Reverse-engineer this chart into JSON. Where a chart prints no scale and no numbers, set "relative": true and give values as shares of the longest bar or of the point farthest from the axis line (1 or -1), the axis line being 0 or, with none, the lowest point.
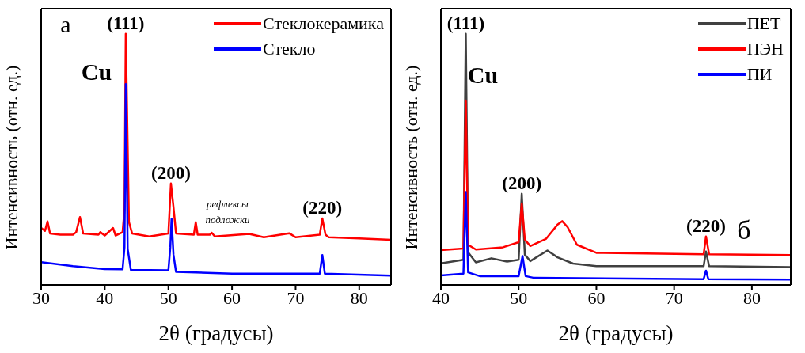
{
  "chart_data": [
    {
      "type": "line",
      "relative": true,
      "xlabel": "2θ (градусы)",
      "ylabel": "Интенсивность (отн. ед.)",
      "xlim": [
        30,
        85
      ],
      "xticks": [
        30,
        40,
        50,
        60,
        70,
        80
      ],
      "legend": "top right",
      "grid": false,
      "marker": "none",
      "annotations": [
        "а",
        "Cu",
        "рефлексы подложки",
        {
          "text": "(111)",
          "x": 43.3,
          "y": 1.0
        },
        {
          "text": "(200)",
          "x": 50.4,
          "y": 0.404
        },
        {
          "text": "(220)",
          "x": 74.2,
          "y": 0.265
        }
      ],
      "series": [
        {
          "name": "Стеклокерамика",
          "color": "#ff0000",
          "x": [
            30,
            30.6,
            31,
            31.4,
            33,
            35,
            35.5,
            36.1,
            36.6,
            39,
            39.3,
            40,
            41.3,
            41.7,
            42.8,
            43.1,
            43.3,
            43.8,
            44.3,
            47,
            50,
            50.4,
            50.8,
            51.2,
            54,
            54.3,
            54.6,
            56.5,
            56.8,
            57.3,
            62.7,
            65,
            69,
            70,
            73.8,
            74.2,
            74.7,
            75.2,
            80,
            85
          ],
          "values": [
            0.227,
            0.215,
            0.253,
            0.205,
            0.2,
            0.2,
            0.21,
            0.27,
            0.205,
            0.2,
            0.21,
            0.197,
            0.227,
            0.197,
            0.21,
            0.3,
            1.0,
            0.25,
            0.205,
            0.193,
            0.205,
            0.404,
            0.31,
            0.205,
            0.2,
            0.25,
            0.2,
            0.2,
            0.208,
            0.193,
            0.203,
            0.19,
            0.206,
            0.19,
            0.2,
            0.265,
            0.2,
            0.19,
            0.185,
            0.18
          ]
        },
        {
          "name": "Стекло",
          "color": "#0000ff",
          "x": [
            30,
            35,
            40,
            42.8,
            43.1,
            43.3,
            43.6,
            44.1,
            50,
            50.3,
            50.5,
            50.8,
            51.2,
            60,
            73.8,
            74.2,
            74.6,
            85
          ],
          "values": [
            0.091,
            0.075,
            0.063,
            0.062,
            0.15,
            0.8,
            0.143,
            0.06,
            0.058,
            0.15,
            0.263,
            0.12,
            0.052,
            0.045,
            0.045,
            0.119,
            0.045,
            0.037
          ]
        }
      ]
    },
    {
      "type": "line",
      "relative": true,
      "xlabel": "2θ (градусы)",
      "ylabel": "Интенсивность (отн. ед.)",
      "xlim": [
        40,
        85
      ],
      "xticks": [
        40,
        50,
        60,
        70,
        80
      ],
      "legend": "top right",
      "grid": false,
      "marker": "none",
      "annotations": [
        "Cu",
        "б",
        {
          "text": "(111)",
          "x": 43.2,
          "y": 1.0
        },
        {
          "text": "(200)",
          "x": 50.4,
          "y": 0.363
        },
        {
          "text": "(220)",
          "x": 74.1,
          "y": 0.193
        }
      ],
      "series": [
        {
          "name": "ПЕТ",
          "color": "#404040",
          "x": [
            40,
            42.9,
            43.2,
            43.5,
            44.5,
            46.5,
            48.5,
            50,
            50.4,
            50.8,
            51.5,
            53.7,
            55,
            57,
            60,
            73.8,
            74.1,
            74.5,
            85
          ],
          "values": [
            0.086,
            0.1,
            1.0,
            0.13,
            0.09,
            0.106,
            0.093,
            0.1,
            0.363,
            0.12,
            0.095,
            0.137,
            0.11,
            0.085,
            0.075,
            0.075,
            0.133,
            0.075,
            0.071
          ]
        },
        {
          "name": "ПЭН",
          "color": "#ff0000",
          "x": [
            40,
            42.9,
            43.2,
            43.5,
            44.5,
            48,
            50,
            50.4,
            50.8,
            51.5,
            53.5,
            55,
            55.6,
            56.3,
            57.5,
            60,
            73.8,
            74.1,
            74.5,
            85
          ],
          "values": [
            0.139,
            0.145,
            0.734,
            0.16,
            0.141,
            0.15,
            0.17,
            0.325,
            0.18,
            0.155,
            0.183,
            0.24,
            0.254,
            0.23,
            0.16,
            0.128,
            0.122,
            0.193,
            0.122,
            0.119
          ]
        },
        {
          "name": "ПИ",
          "color": "#0000ff",
          "x": [
            40,
            42.9,
            43.2,
            43.5,
            45,
            50,
            50.5,
            50.9,
            52,
            73.8,
            74.1,
            74.4,
            85
          ],
          "values": [
            0.038,
            0.045,
            0.37,
            0.05,
            0.035,
            0.035,
            0.115,
            0.035,
            0.028,
            0.023,
            0.057,
            0.023,
            0.021
          ]
        }
      ]
    }
  ]
}
